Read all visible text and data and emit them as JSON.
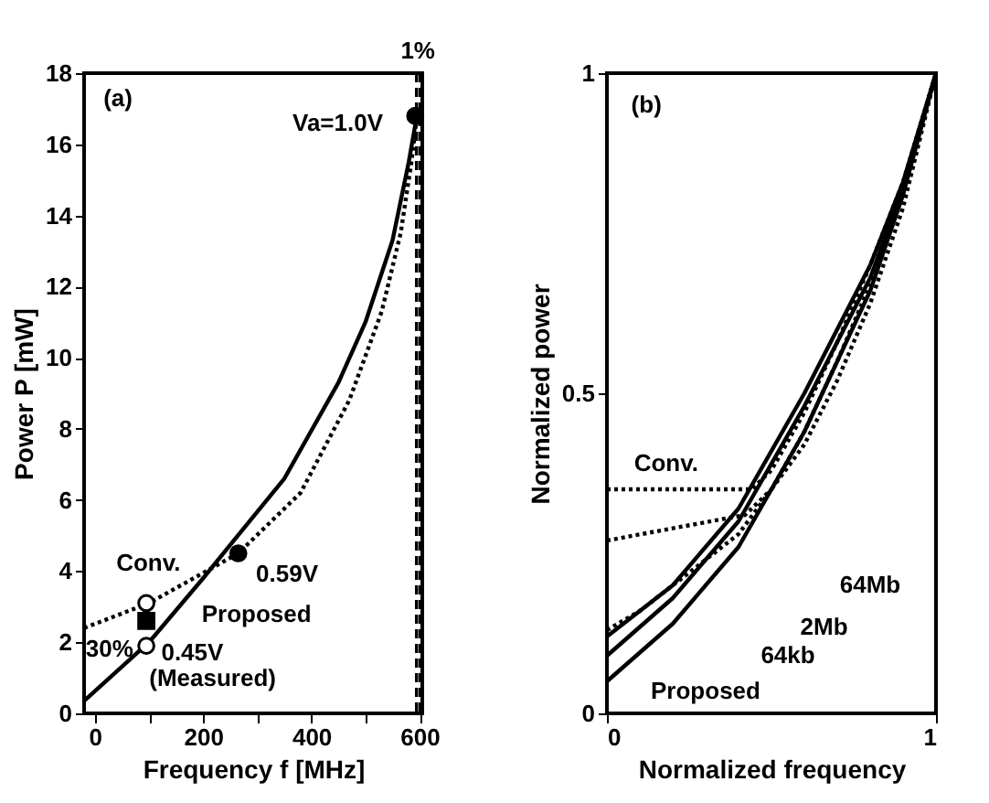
{
  "chart_data": [
    {
      "type": "line",
      "xlabel": "Frequency f [MHz]",
      "ylabel": "Power P [mW]",
      "xlim": [
        -20,
        605
      ],
      "ylim": [
        0,
        18
      ],
      "xticks": [
        0,
        {
          "value": 100,
          "label": null
        },
        200,
        {
          "value": 300,
          "label": null
        },
        400,
        {
          "value": 500,
          "label": null
        },
        600
      ],
      "yticks": [
        0,
        2,
        4,
        6,
        8,
        10,
        12,
        14,
        16,
        18
      ],
      "grid": false,
      "series": [
        {
          "type": "line",
          "color": "#000000",
          "line_style": "solid",
          "x": [
            -20,
            100,
            200,
            350,
            450,
            500,
            550,
            580,
            595
          ],
          "values": [
            0.35,
            2.0,
            3.8,
            6.6,
            9.3,
            11,
            13.3,
            15.5,
            16.8
          ]
        },
        {
          "type": "line",
          "color": "#000000",
          "line_style": "dotted",
          "x": [
            -20,
            100,
            265,
            380,
            470,
            530,
            565,
            585,
            595
          ],
          "values": [
            2.4,
            3.1,
            4.5,
            6.2,
            8.8,
            11.3,
            13.5,
            15.5,
            16.8
          ]
        },
        {
          "type": "scatter",
          "color": "#000000",
          "marker": "circle",
          "x": [
            592,
            265
          ],
          "values": [
            16.8,
            4.5
          ]
        },
        {
          "type": "scatter",
          "color": "#ffffff",
          "marker": "circle",
          "x": [
            95,
            95
          ],
          "values": [
            3.1,
            1.9
          ]
        },
        {
          "type": "scatter",
          "color": "#000000",
          "marker": "square",
          "x": [
            95
          ],
          "values": [
            2.6
          ]
        }
      ],
      "ref_lines": [
        {
          "axis": "x",
          "value": 594,
          "line_style": "dashed"
        },
        {
          "axis": "x",
          "value": 600,
          "line_style": "dashed"
        }
      ],
      "annotations": [
        "(a)",
        "Va=1.0V",
        "0.59V",
        "Conv.",
        "Proposed",
        "30%",
        "0.45V",
        "(Measured)",
        "1%"
      ]
    },
    {
      "type": "line",
      "xlabel": "Normalized frequency",
      "ylabel": "Normalized power",
      "xlim": [
        0,
        1
      ],
      "ylim": [
        0,
        1
      ],
      "xticks": [
        0,
        1
      ],
      "yticks": [
        0,
        0.5,
        1
      ],
      "grid": false,
      "series": [
        {
          "type": "line",
          "color": "#000000",
          "line_style": "solid",
          "x": [
            0,
            0.2,
            0.4,
            0.6,
            0.8,
            0.9,
            1
          ],
          "values": [
            0.12,
            0.2,
            0.32,
            0.5,
            0.7,
            0.83,
            1
          ]
        },
        {
          "type": "line",
          "color": "#000000",
          "line_style": "solid",
          "x": [
            0,
            0.2,
            0.4,
            0.6,
            0.8,
            0.9,
            1
          ],
          "values": [
            0.09,
            0.18,
            0.3,
            0.48,
            0.68,
            0.82,
            1
          ]
        },
        {
          "type": "line",
          "color": "#000000",
          "line_style": "solid",
          "x": [
            0,
            0.2,
            0.4,
            0.6,
            0.8,
            0.9,
            1
          ],
          "values": [
            0.05,
            0.14,
            0.26,
            0.44,
            0.66,
            0.81,
            1
          ]
        },
        {
          "type": "line",
          "color": "#000000",
          "line_style": "dotted",
          "x": [
            0,
            0.44,
            0.5,
            0.6,
            0.7,
            0.8,
            0.9,
            1
          ],
          "values": [
            0.35,
            0.35,
            0.38,
            0.47,
            0.58,
            0.7,
            0.83,
            1
          ]
        },
        {
          "type": "line",
          "color": "#000000",
          "line_style": "dotted",
          "x": [
            0,
            0.42,
            0.5,
            0.6,
            0.7,
            0.8,
            0.9,
            1
          ],
          "values": [
            0.27,
            0.31,
            0.35,
            0.44,
            0.55,
            0.67,
            0.82,
            1
          ]
        },
        {
          "type": "line",
          "color": "#000000",
          "line_style": "dotted",
          "x": [
            0,
            0.1,
            0.2,
            0.4,
            0.6,
            0.7,
            0.8,
            0.9,
            1
          ],
          "values": [
            0.13,
            0.16,
            0.2,
            0.28,
            0.42,
            0.52,
            0.64,
            0.79,
            1
          ]
        }
      ],
      "annotations": [
        "(b)",
        "Conv.",
        "64Mb",
        "2Mb",
        "64kb",
        "Proposed"
      ]
    }
  ]
}
